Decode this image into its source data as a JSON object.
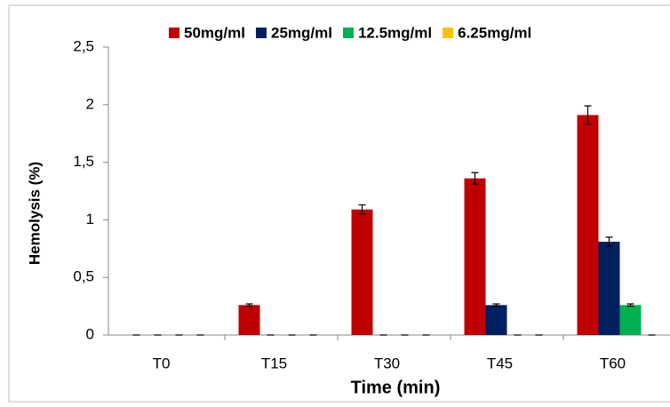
{
  "chart_data": {
    "type": "bar",
    "y_label": "Hemolysis (%)",
    "x_label": "Time (min)",
    "categories": [
      "T0",
      "T15",
      "T30",
      "T45",
      "T60"
    ],
    "series": [
      {
        "name": "50mg/ml",
        "color": "#c00000",
        "values": [
          0,
          0.26,
          1.09,
          1.36,
          1.91
        ],
        "errors": [
          0,
          0.01,
          0.04,
          0.05,
          0.08
        ]
      },
      {
        "name": "25mg/ml",
        "color": "#002060",
        "values": [
          0,
          0,
          0,
          0.26,
          0.81
        ],
        "errors": [
          0,
          0,
          0,
          0.01,
          0.04
        ]
      },
      {
        "name": "12.5mg/ml",
        "color": "#00b050",
        "values": [
          0,
          0,
          0,
          0,
          0.26
        ],
        "errors": [
          0,
          0,
          0,
          0,
          0.01
        ]
      },
      {
        "name": "6.25mg/ml",
        "color": "#ffc000",
        "values": [
          0,
          0,
          0,
          0,
          0
        ],
        "errors": [
          0,
          0,
          0,
          0,
          0
        ]
      }
    ],
    "ylim": [
      0,
      2.5
    ],
    "yticks": [
      0,
      {
        "value": 0.5,
        "label": "0,5"
      },
      1,
      {
        "value": 1.5,
        "label": "1,5"
      },
      2,
      {
        "value": 2.5,
        "label": "2,5"
      }
    ],
    "legend": "top"
  }
}
